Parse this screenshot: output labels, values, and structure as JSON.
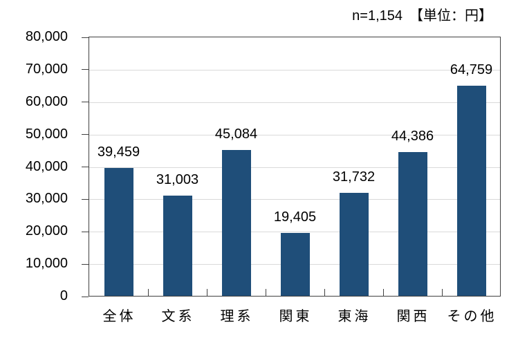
{
  "chart_data": {
    "type": "bar",
    "title": "",
    "annotation": "n=1,154　【単位：円】",
    "sample_size_note": "n=1,154",
    "unit_note": "【単位：円】",
    "categories": [
      "全体",
      "文系",
      "理系",
      "関東",
      "東海",
      "関西",
      "その他"
    ],
    "values": [
      39459,
      31003,
      45084,
      19405,
      31732,
      44386,
      64759
    ],
    "value_labels": [
      "39,459",
      "31,003",
      "45,084",
      "19,405",
      "31,732",
      "44,386",
      "64,759"
    ],
    "ylim": [
      0,
      80000
    ],
    "ytick_interval": 10000,
    "ytick_labels": [
      "0",
      "10,000",
      "20,000",
      "30,000",
      "40,000",
      "50,000",
      "60,000",
      "70,000",
      "80,000"
    ],
    "grid": true,
    "legend": "none",
    "bar_color": "#1F4E79",
    "gridline_color": "#D9D9D9",
    "axis_color": "#404040",
    "text_color": "#000000"
  }
}
